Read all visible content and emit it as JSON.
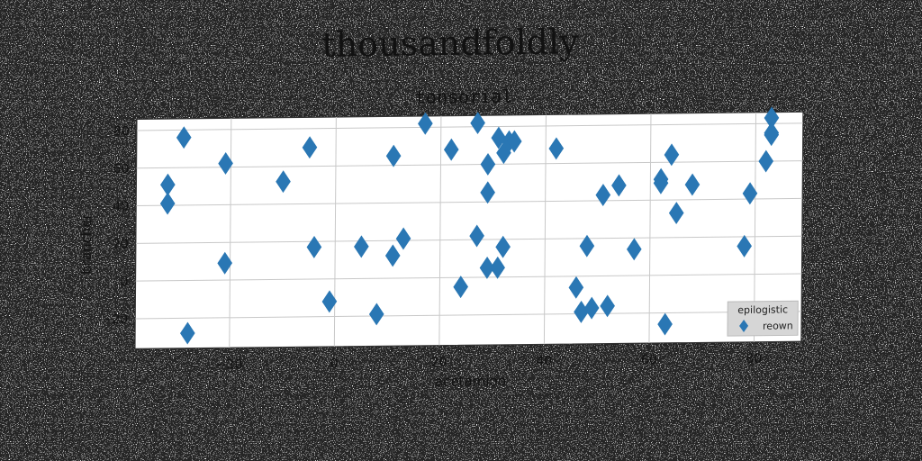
{
  "title": "thousandfoldly",
  "chart_data": {
    "type": "scatter",
    "title": "tonsorial",
    "xlabel": "acetamido",
    "ylabel": "brancher",
    "xlim": [
      -38,
      89
    ],
    "ylim": [
      -36,
      86
    ],
    "xticks": [
      -20,
      0,
      20,
      40,
      60,
      80
    ],
    "xtick_labels": [
      "−20",
      "0",
      "20",
      "40",
      "60",
      "80"
    ],
    "yticks": [
      -20,
      0,
      20,
      40,
      60,
      80
    ],
    "ytick_labels": [
      "−20",
      "0",
      "20",
      "40",
      "60",
      "80"
    ],
    "grid": true,
    "legend": {
      "title": "epilogistic",
      "position": "lower-right",
      "entries": [
        "reown"
      ]
    },
    "series": [
      {
        "name": "reown",
        "marker": "diamond",
        "color": "#2a77b4",
        "points": [
          [
            -32,
            51
          ],
          [
            -32,
            41
          ],
          [
            -29,
            76
          ],
          [
            -28,
            -28
          ],
          [
            -21,
            62
          ],
          [
            -21,
            9
          ],
          [
            -10,
            52
          ],
          [
            -5,
            70
          ],
          [
            -4,
            17
          ],
          [
            -1,
            -12
          ],
          [
            5,
            17
          ],
          [
            8,
            -19
          ],
          [
            11,
            65
          ],
          [
            11,
            12
          ],
          [
            13,
            21
          ],
          [
            17,
            82
          ],
          [
            22,
            68
          ],
          [
            24,
            -5
          ],
          [
            27,
            82
          ],
          [
            27,
            22
          ],
          [
            29,
            60
          ],
          [
            29,
            45
          ],
          [
            29,
            5
          ],
          [
            31,
            74
          ],
          [
            31,
            5
          ],
          [
            32,
            66
          ],
          [
            32,
            16
          ],
          [
            33,
            72
          ],
          [
            34,
            72
          ],
          [
            42,
            68
          ],
          [
            46,
            -6
          ],
          [
            47,
            -19
          ],
          [
            48,
            16
          ],
          [
            49,
            -17
          ],
          [
            51,
            43
          ],
          [
            52,
            -16
          ],
          [
            54,
            48
          ],
          [
            57,
            14
          ],
          [
            62,
            51
          ],
          [
            62,
            49
          ],
          [
            63,
            -26
          ],
          [
            64,
            64
          ],
          [
            65,
            33
          ],
          [
            68,
            48
          ],
          [
            78,
            15
          ],
          [
            79,
            43
          ],
          [
            82,
            60
          ],
          [
            83,
            83
          ],
          [
            83,
            74
          ],
          [
            83,
            75
          ]
        ]
      }
    ]
  }
}
